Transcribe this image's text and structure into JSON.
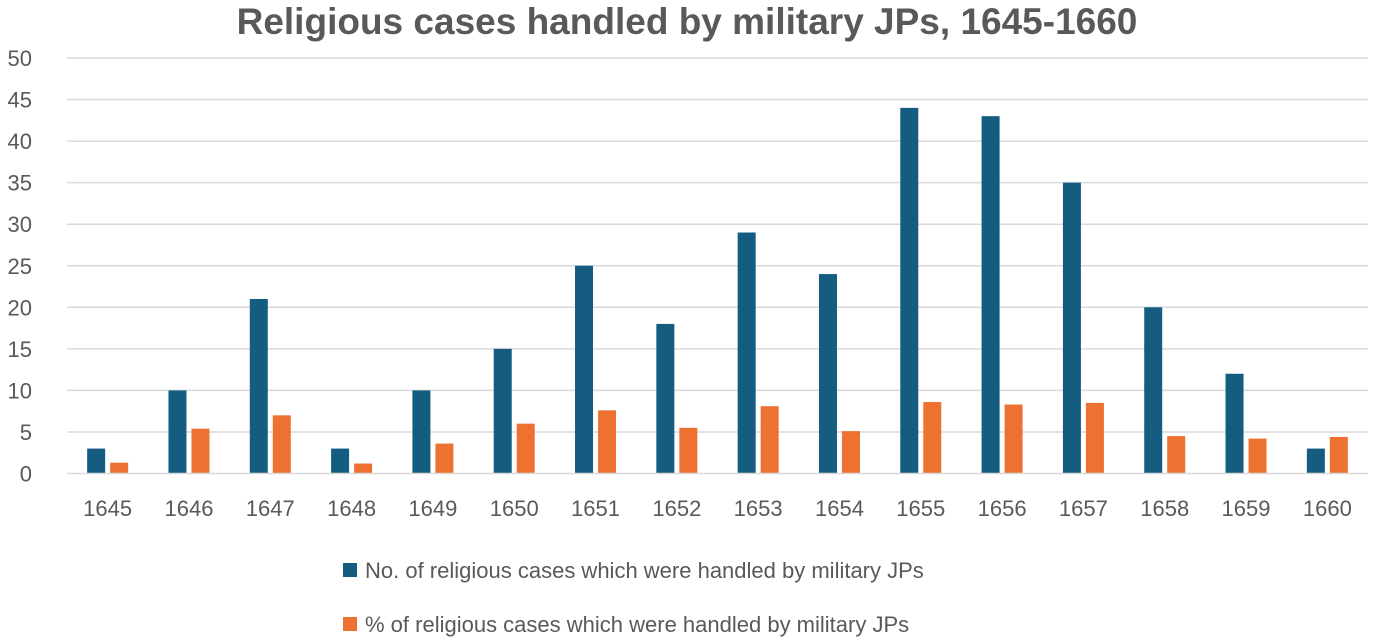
{
  "chart_data": {
    "type": "bar",
    "title": "Religious cases handled by military JPs, 1645-1660",
    "xlabel": "",
    "ylabel": "",
    "ylim": [
      0,
      50
    ],
    "yticks": [
      "0",
      "5",
      "10",
      "15",
      "20",
      "25",
      "30",
      "35",
      "40",
      "45",
      "50"
    ],
    "grid": true,
    "legend_position": "bottom",
    "categories": [
      "1645",
      "1646",
      "1647",
      "1648",
      "1649",
      "1650",
      "1651",
      "1652",
      "1653",
      "1654",
      "1655",
      "1656",
      "1657",
      "1658",
      "1659",
      "1660"
    ],
    "series": [
      {
        "name": "No. of religious cases which were handled by military JPs",
        "color": "#145C80",
        "values": [
          3,
          10,
          21,
          3,
          10,
          15,
          25,
          18,
          29,
          24,
          44,
          43,
          35,
          20,
          12,
          3
        ]
      },
      {
        "name": "% of religious cases which were handled by military JPs",
        "color": "#ED7232",
        "values": [
          1.3,
          5.4,
          7.0,
          1.2,
          3.6,
          6.0,
          7.6,
          5.5,
          8.1,
          5.1,
          8.6,
          8.3,
          8.5,
          4.5,
          4.2,
          4.4
        ]
      }
    ]
  }
}
